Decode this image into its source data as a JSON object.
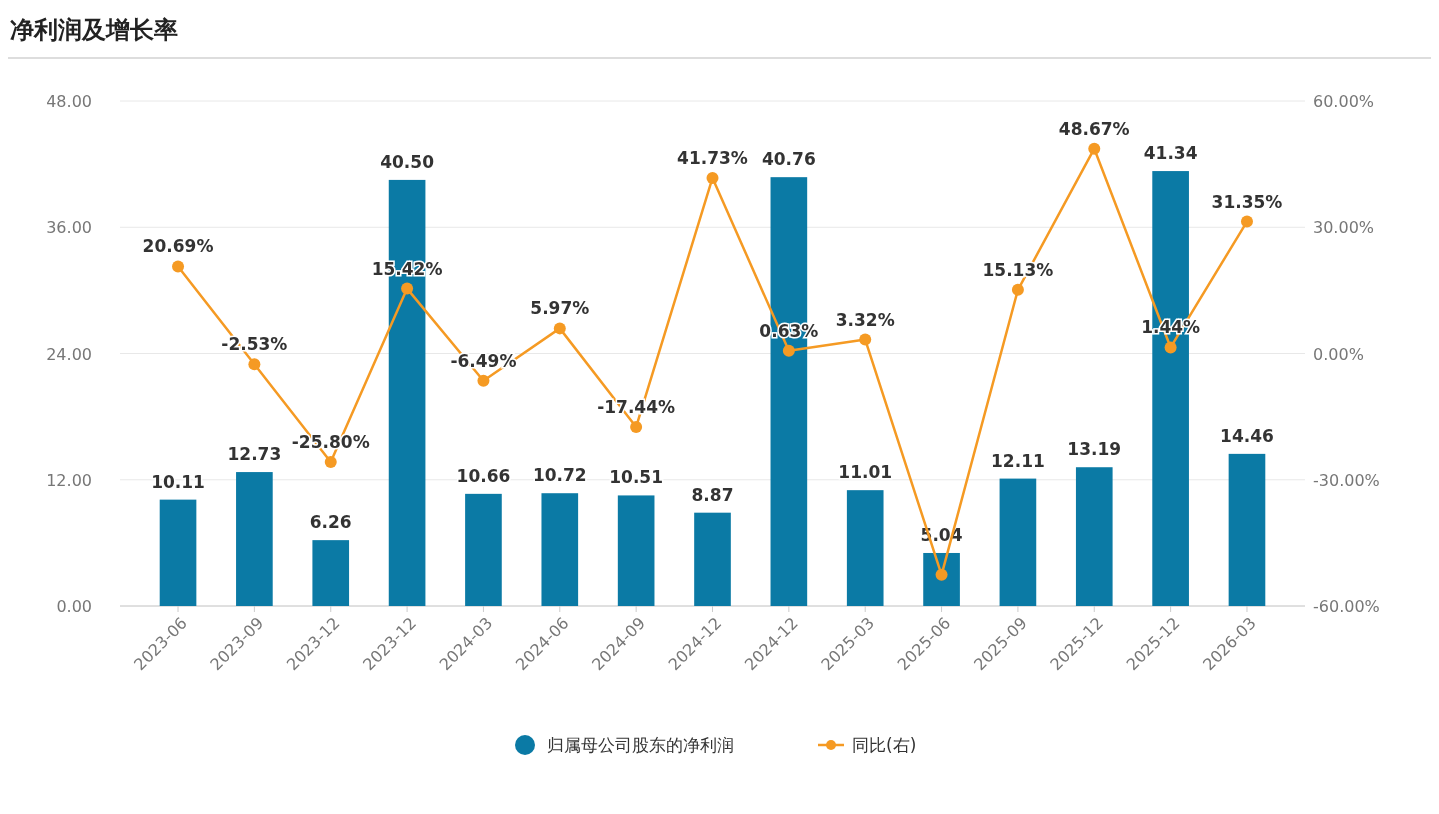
{
  "chart_data": {
    "type": "bar",
    "title": "净利润及增长率",
    "categories": [
      "2023-06",
      "2023-09",
      "2023-12",
      "2023-12",
      "2024-03",
      "2024-06",
      "2024-09",
      "2024-12",
      "2024-12",
      "2025-03",
      "2025-06",
      "2025-09",
      "2025-12",
      "2025-12",
      "2026-03"
    ],
    "series": [
      {
        "name": "归属母公司股东的净利润",
        "color": "#0b7aa5",
        "values": [
          10.11,
          12.73,
          6.26,
          40.5,
          10.66,
          10.72,
          10.51,
          8.87,
          40.76,
          11.01,
          5.04,
          12.11,
          13.19,
          41.34,
          14.46
        ],
        "value_labels": [
          "10.11",
          "12.73",
          "6.26",
          "40.50",
          "10.66",
          "10.72",
          "10.51",
          "8.87",
          "40.76",
          "11.01",
          "5.04",
          "12.11",
          "13.19",
          "41.34",
          "14.46"
        ]
      },
      {
        "name": "同比(右)",
        "type": "line",
        "axis": "y2",
        "color": "#f59a23",
        "values": [
          20.69,
          -2.53,
          -25.8,
          15.42,
          -6.49,
          5.97,
          -17.44,
          41.73,
          0.63,
          3.32,
          -52.6,
          15.13,
          48.67,
          1.44,
          31.35
        ],
        "value_labels": [
          "20.69%",
          "-2.53%",
          "-25.80%",
          "15.42%",
          "-6.49%",
          "5.97%",
          "-17.44%",
          "41.73%",
          "0.63%",
          "3.32%",
          null,
          "15.13%",
          "48.67%",
          "1.44%",
          "31.35%"
        ]
      }
    ],
    "ylim": [
      0,
      48
    ],
    "yticks": [
      {
        "value": 0,
        "label": "0.00"
      },
      {
        "value": 12,
        "label": "12.00"
      },
      {
        "value": 24,
        "label": "24.00"
      },
      {
        "value": 36,
        "label": "36.00"
      },
      {
        "value": 48,
        "label": "48.00"
      }
    ],
    "y2lim": [
      -60,
      60
    ],
    "y2ticks": [
      {
        "value": -60,
        "label": "-60.00%"
      },
      {
        "value": -30,
        "label": "-30.00%"
      },
      {
        "value": 0,
        "label": "0.00%"
      },
      {
        "value": 30,
        "label": "30.00%"
      },
      {
        "value": 60,
        "label": "60.00%"
      }
    ],
    "grid": "y",
    "legend": "bottom",
    "marker": "circle"
  }
}
